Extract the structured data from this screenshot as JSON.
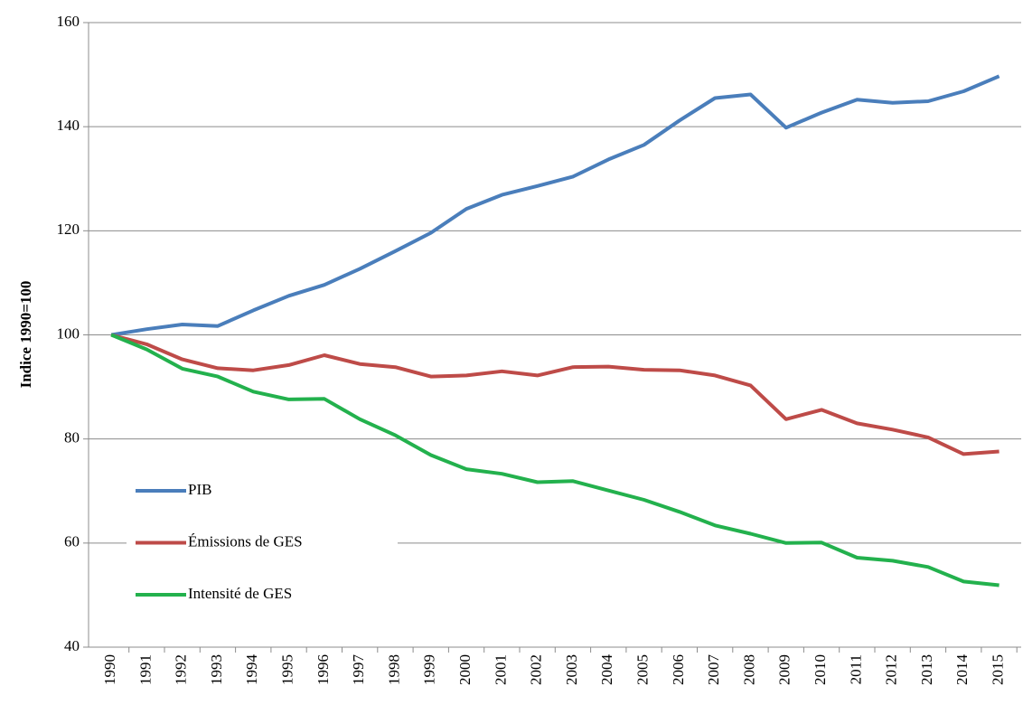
{
  "chart_data": {
    "type": "line",
    "y_label": "Indice 1990=100",
    "categories": [
      "1990",
      "1991",
      "1992",
      "1993",
      "1994",
      "1995",
      "1996",
      "1997",
      "1998",
      "1999",
      "2000",
      "2001",
      "2002",
      "2003",
      "2004",
      "2005",
      "2006",
      "2007",
      "2008",
      "2009",
      "2010",
      "2011",
      "2012",
      "2013",
      "2014",
      "2015"
    ],
    "series": [
      {
        "name": "PIB",
        "color": "#4a7ebb",
        "values": [
          100,
          101.1,
          102,
          101.7,
          104.7,
          107.5,
          109.6,
          112.7,
          116.1,
          119.6,
          124.2,
          126.9,
          128.6,
          130.4,
          133.7,
          136.5,
          141.2,
          145.5,
          146.2,
          139.8,
          142.7,
          145.2,
          144.6,
          144.9,
          146.8,
          149.7
        ]
      },
      {
        "name": "Émissions de GES",
        "color": "#be4b48",
        "values": [
          100,
          98.2,
          95.3,
          93.6,
          93.2,
          94.2,
          96.1,
          94.4,
          93.8,
          92,
          92.2,
          93,
          92.2,
          93.8,
          93.9,
          93.3,
          93.2,
          92.2,
          90.3,
          83.8,
          85.6,
          83,
          81.8,
          80.3,
          77.1,
          77.6
        ]
      },
      {
        "name": "Intensité de GES",
        "color": "#23b14d",
        "values": [
          100,
          97.2,
          93.5,
          92,
          89.1,
          87.6,
          87.7,
          83.8,
          80.7,
          76.9,
          74.2,
          73.3,
          71.7,
          71.9,
          70.1,
          68.3,
          66,
          63.4,
          61.8,
          60,
          60.1,
          57.2,
          56.6,
          55.4,
          52.6,
          51.9
        ]
      }
    ],
    "ylim": [
      40,
      160
    ],
    "yticks": [
      40,
      60,
      80,
      100,
      120,
      140,
      160
    ],
    "grid": true,
    "legend": "lower left"
  }
}
